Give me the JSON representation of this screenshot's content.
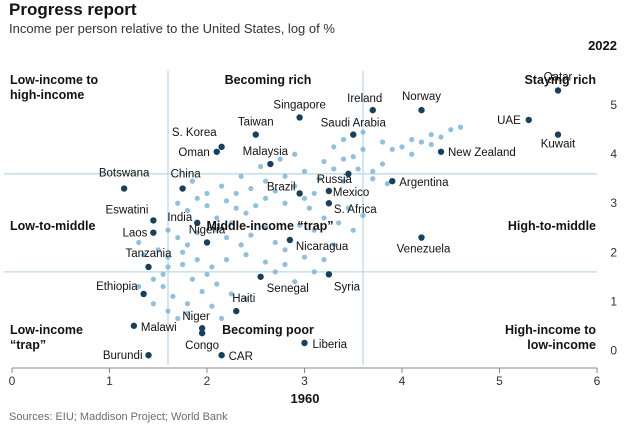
{
  "title": "Progress report",
  "subtitle": "Income per person relative to the United States, log of %",
  "source": "Sources: EIU; Maddison Project; World Bank",
  "colors": {
    "highlight": "#17405e",
    "dot": "#7bb6d9",
    "divider": "#bcd9ea",
    "axis": "#888888"
  },
  "chart_data": {
    "type": "scatter",
    "xlabel": "1960",
    "ylabel": "2022",
    "xlim": [
      0,
      6
    ],
    "ylim": [
      -0.3,
      5.8
    ],
    "x_ticks": [
      "0",
      "1",
      "2",
      "3",
      "4",
      "5",
      "6"
    ],
    "y_ticks": [
      "0",
      "1",
      "2",
      "3",
      "4",
      "5"
    ],
    "dividers": {
      "x": [
        1.6,
        3.6
      ],
      "y": [
        1.6,
        3.6
      ]
    },
    "quadrant_labels": [
      {
        "text": "Low-income to\nhigh-income"
      },
      {
        "text": "Becoming rich"
      },
      {
        "text": "Staying rich"
      },
      {
        "text": "Low-to-middle"
      },
      {
        "text": "Middle-income “trap”"
      },
      {
        "text": "High-to-middle"
      },
      {
        "text": "Low-income\n“trap”"
      },
      {
        "text": "Becoming poor"
      },
      {
        "text": "High-income to\nlow-income"
      }
    ],
    "highlighted": [
      {
        "name": "Qatar",
        "x": 5.6,
        "y": 5.3
      },
      {
        "name": "UAE",
        "x": 5.3,
        "y": 4.7
      },
      {
        "name": "Kuwait",
        "x": 5.6,
        "y": 4.4
      },
      {
        "name": "Ireland",
        "x": 3.7,
        "y": 4.9
      },
      {
        "name": "Norway",
        "x": 4.2,
        "y": 4.9
      },
      {
        "name": "Singapore",
        "x": 2.95,
        "y": 4.75
      },
      {
        "name": "Saudi Arabia",
        "x": 3.5,
        "y": 4.4
      },
      {
        "name": "Taiwan",
        "x": 2.5,
        "y": 4.4
      },
      {
        "name": "S. Korea",
        "x": 2.15,
        "y": 4.15
      },
      {
        "name": "Oman",
        "x": 2.1,
        "y": 4.05
      },
      {
        "name": "Malaysia",
        "x": 2.65,
        "y": 3.8
      },
      {
        "name": "New Zealand",
        "x": 4.4,
        "y": 4.05
      },
      {
        "name": "Botswana",
        "x": 1.15,
        "y": 3.3
      },
      {
        "name": "China",
        "x": 1.75,
        "y": 3.3
      },
      {
        "name": "Russia",
        "x": 3.45,
        "y": 3.6
      },
      {
        "name": "Argentina",
        "x": 3.9,
        "y": 3.45
      },
      {
        "name": "Brazil",
        "x": 2.95,
        "y": 3.2
      },
      {
        "name": "Mexico",
        "x": 3.25,
        "y": 3.25
      },
      {
        "name": "S. Africa",
        "x": 3.25,
        "y": 3.0
      },
      {
        "name": "Eswatini",
        "x": 1.45,
        "y": 2.65
      },
      {
        "name": "India",
        "x": 1.9,
        "y": 2.6
      },
      {
        "name": "Laos",
        "x": 1.45,
        "y": 2.4
      },
      {
        "name": "Nigeria",
        "x": 2.0,
        "y": 2.2
      },
      {
        "name": "Tanzania",
        "x": 1.4,
        "y": 1.7
      },
      {
        "name": "Nicaragua",
        "x": 2.85,
        "y": 2.25
      },
      {
        "name": "Venezuela",
        "x": 4.2,
        "y": 2.3
      },
      {
        "name": "Ethiopia",
        "x": 1.35,
        "y": 1.15
      },
      {
        "name": "Senegal",
        "x": 2.55,
        "y": 1.5
      },
      {
        "name": "Syria",
        "x": 3.25,
        "y": 1.55
      },
      {
        "name": "Haiti",
        "x": 2.3,
        "y": 0.8
      },
      {
        "name": "Malawi",
        "x": 1.25,
        "y": 0.5
      },
      {
        "name": "Niger",
        "x": 1.95,
        "y": 0.45
      },
      {
        "name": "Congo",
        "x": 1.95,
        "y": 0.35
      },
      {
        "name": "Liberia",
        "x": 3.0,
        "y": 0.15
      },
      {
        "name": "Burundi",
        "x": 1.4,
        "y": -0.1
      },
      {
        "name": "CAR",
        "x": 2.15,
        "y": -0.1
      }
    ],
    "others": [
      [
        1.7,
        3.0
      ],
      [
        1.8,
        2.85
      ],
      [
        1.9,
        3.1
      ],
      [
        2.0,
        2.95
      ],
      [
        2.2,
        3.05
      ],
      [
        2.3,
        2.9
      ],
      [
        2.1,
        2.7
      ],
      [
        2.25,
        2.6
      ],
      [
        2.4,
        2.8
      ],
      [
        2.5,
        2.95
      ],
      [
        2.6,
        3.1
      ],
      [
        2.7,
        3.25
      ],
      [
        2.8,
        3.0
      ],
      [
        2.9,
        3.35
      ],
      [
        3.0,
        3.1
      ],
      [
        3.1,
        3.2
      ],
      [
        3.05,
        2.9
      ],
      [
        3.15,
        3.5
      ],
      [
        3.3,
        3.7
      ],
      [
        3.4,
        3.9
      ],
      [
        3.5,
        3.95
      ],
      [
        3.55,
        3.7
      ],
      [
        3.6,
        4.1
      ],
      [
        3.3,
        4.15
      ],
      [
        3.2,
        3.85
      ],
      [
        3.0,
        3.65
      ],
      [
        2.8,
        3.55
      ],
      [
        2.6,
        3.45
      ],
      [
        2.45,
        3.3
      ],
      [
        2.3,
        3.2
      ],
      [
        2.15,
        3.35
      ],
      [
        2.35,
        3.55
      ],
      [
        2.55,
        3.75
      ],
      [
        2.75,
        3.9
      ],
      [
        2.9,
        4.0
      ],
      [
        3.4,
        4.3
      ],
      [
        3.6,
        4.45
      ],
      [
        3.8,
        4.25
      ],
      [
        3.9,
        4.1
      ],
      [
        4.0,
        4.15
      ],
      [
        4.1,
        4.3
      ],
      [
        4.2,
        4.25
      ],
      [
        4.3,
        4.4
      ],
      [
        4.4,
        4.35
      ],
      [
        4.5,
        4.5
      ],
      [
        4.6,
        4.55
      ],
      [
        4.3,
        4.2
      ],
      [
        4.1,
        4.0
      ],
      [
        3.7,
        3.65
      ],
      [
        3.8,
        3.8
      ],
      [
        1.6,
        2.45
      ],
      [
        1.7,
        2.3
      ],
      [
        1.8,
        2.15
      ],
      [
        1.9,
        2.4
      ],
      [
        2.1,
        2.45
      ],
      [
        2.2,
        2.3
      ],
      [
        2.35,
        2.15
      ],
      [
        2.45,
        2.35
      ],
      [
        2.6,
        2.5
      ],
      [
        2.7,
        2.2
      ],
      [
        2.8,
        2.05
      ],
      [
        2.95,
        2.55
      ],
      [
        3.1,
        2.45
      ],
      [
        3.2,
        2.7
      ],
      [
        3.35,
        2.6
      ],
      [
        3.45,
        2.9
      ],
      [
        1.5,
        2.05
      ],
      [
        1.6,
        1.9
      ],
      [
        1.75,
        1.75
      ],
      [
        1.9,
        1.85
      ],
      [
        2.05,
        1.7
      ],
      [
        2.2,
        1.85
      ],
      [
        2.4,
        1.95
      ],
      [
        2.6,
        1.8
      ],
      [
        2.8,
        1.75
      ],
      [
        3.0,
        1.9
      ],
      [
        3.2,
        1.85
      ],
      [
        3.1,
        1.6
      ],
      [
        1.3,
        2.2
      ],
      [
        1.35,
        1.95
      ],
      [
        1.45,
        1.45
      ],
      [
        1.55,
        1.3
      ],
      [
        1.65,
        1.1
      ],
      [
        1.8,
        0.95
      ],
      [
        1.95,
        1.2
      ],
      [
        2.1,
        1.35
      ],
      [
        2.25,
        1.15
      ],
      [
        2.4,
        1.05
      ],
      [
        1.6,
        0.8
      ],
      [
        1.7,
        0.65
      ],
      [
        1.8,
        0.75
      ],
      [
        2.05,
        0.9
      ],
      [
        1.45,
        0.95
      ],
      [
        1.3,
        1.3
      ],
      [
        1.55,
        1.55
      ],
      [
        1.85,
        1.45
      ],
      [
        2.0,
        1.55
      ],
      [
        2.15,
        0.65
      ],
      [
        1.6,
        1.7
      ],
      [
        1.75,
        2.0
      ],
      [
        2.9,
        1.4
      ],
      [
        2.7,
        1.6
      ],
      [
        3.3,
        2.15
      ],
      [
        3.5,
        2.45
      ],
      [
        3.6,
        2.75
      ],
      [
        2.0,
        3.2
      ],
      [
        1.85,
        3.45
      ],
      [
        3.7,
        3.5
      ],
      [
        3.4,
        3.45
      ],
      [
        3.85,
        3.4
      ]
    ]
  }
}
